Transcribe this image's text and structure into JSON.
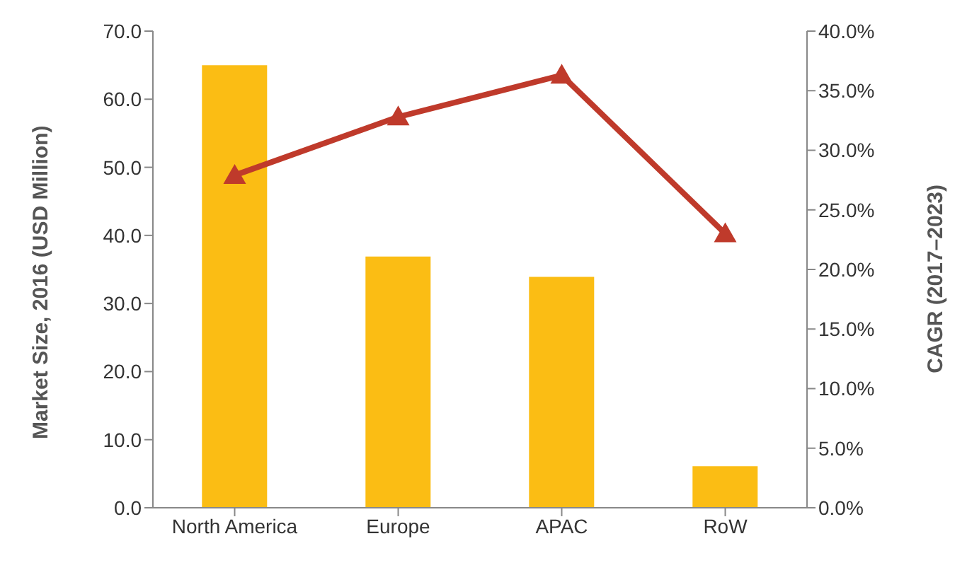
{
  "chart_data": {
    "type": "bar",
    "ylabel": "Market Size, 2016 (USD Million)",
    "y2label": "CAGR (2017–2023)",
    "categories": [
      "North America",
      "Europe",
      "APAC",
      "RoW"
    ],
    "series": [
      {
        "color": "#fbbd14",
        "values": [
          65.0,
          36.9,
          33.9,
          6.1
        ]
      },
      {
        "type": "line",
        "axis": "y2",
        "color": "#bf3a2b",
        "marker": "triangle",
        "values": [
          27.9,
          32.8,
          36.3,
          23.0
        ]
      }
    ],
    "ylim": [
      0,
      70
    ],
    "yticks": [
      {
        "value": 0,
        "label": "0.0"
      },
      {
        "value": 10,
        "label": "10.0"
      },
      {
        "value": 20,
        "label": "20.0"
      },
      {
        "value": 30,
        "label": "30.0"
      },
      {
        "value": 40,
        "label": "40.0"
      },
      {
        "value": 50,
        "label": "50.0"
      },
      {
        "value": 60,
        "label": "60.0"
      },
      {
        "value": 70,
        "label": "70.0"
      }
    ],
    "y2lim": [
      0,
      40
    ],
    "y2ticks": [
      {
        "value": 0,
        "label": "0.0%"
      },
      {
        "value": 5,
        "label": "5.0%"
      },
      {
        "value": 10,
        "label": "10.0%"
      },
      {
        "value": 15,
        "label": "15.0%"
      },
      {
        "value": 20,
        "label": "20.0%"
      },
      {
        "value": 25,
        "label": "25.0%"
      },
      {
        "value": 30,
        "label": "30.0%"
      },
      {
        "value": 35,
        "label": "35.0%"
      },
      {
        "value": 40,
        "label": "40.0%"
      }
    ],
    "grid": false,
    "legend": false
  }
}
